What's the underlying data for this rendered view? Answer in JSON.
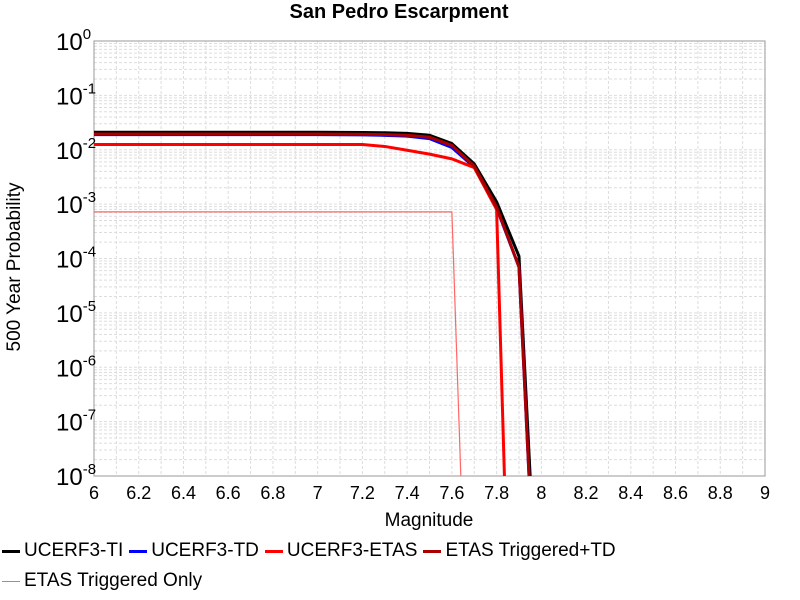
{
  "chart_data": {
    "type": "line",
    "title": "San Pedro Escarpment",
    "xlabel": "Magnitude",
    "ylabel": "500 Year Probability",
    "xlim": [
      6,
      9
    ],
    "ylim": [
      1e-08,
      1
    ],
    "yscale": "log",
    "grid": true,
    "legend_position": "bottom",
    "x_ticks": [
      "6",
      "6.2",
      "6.4",
      "6.6",
      "6.8",
      "7",
      "7.2",
      "7.4",
      "7.6",
      "7.8",
      "8",
      "8.2",
      "8.4",
      "8.6",
      "8.8",
      "9"
    ],
    "y_ticks": [
      {
        "base": "10",
        "exp": "0"
      },
      {
        "base": "10",
        "exp": "-1"
      },
      {
        "base": "10",
        "exp": "-2"
      },
      {
        "base": "10",
        "exp": "-3"
      },
      {
        "base": "10",
        "exp": "-4"
      },
      {
        "base": "10",
        "exp": "-5"
      },
      {
        "base": "10",
        "exp": "-6"
      },
      {
        "base": "10",
        "exp": "-7"
      },
      {
        "base": "10",
        "exp": "-8"
      }
    ],
    "series": [
      {
        "name": "UCERF3-TI",
        "color": "#000000",
        "width": 3,
        "x": [
          6.0,
          7.0,
          7.2,
          7.3,
          7.4,
          7.5,
          7.6,
          7.7,
          7.8,
          7.9,
          7.95
        ],
        "y": [
          0.021,
          0.021,
          0.0208,
          0.0205,
          0.02,
          0.0185,
          0.013,
          0.0055,
          0.0011,
          0.00011,
          1e-08
        ]
      },
      {
        "name": "UCERF3-TD",
        "color": "#0000ff",
        "width": 3,
        "x": [
          6.0,
          7.0,
          7.2,
          7.3,
          7.4,
          7.5,
          7.6,
          7.7,
          7.8,
          7.9,
          7.945
        ],
        "y": [
          0.019,
          0.019,
          0.0188,
          0.0184,
          0.0178,
          0.016,
          0.011,
          0.0048,
          0.00085,
          7e-05,
          1e-08
        ]
      },
      {
        "name": "UCERF3-ETAS",
        "color": "#ff0000",
        "width": 3,
        "x": [
          6.0,
          7.2,
          7.3,
          7.4,
          7.5,
          7.6,
          7.7,
          7.8,
          7.835
        ],
        "y": [
          0.0125,
          0.0125,
          0.0115,
          0.0098,
          0.0083,
          0.0068,
          0.0047,
          0.0008,
          1e-08
        ]
      },
      {
        "name": "ETAS Triggered+TD",
        "color": "#aa0000",
        "width": 3,
        "x": [
          6.0,
          7.0,
          7.2,
          7.3,
          7.4,
          7.5,
          7.6,
          7.7,
          7.8,
          7.9,
          7.945
        ],
        "y": [
          0.0195,
          0.0195,
          0.0193,
          0.019,
          0.0185,
          0.017,
          0.012,
          0.005,
          0.00088,
          7e-05,
          1e-08
        ]
      },
      {
        "name": "ETAS Triggered Only",
        "color": "#ff6666",
        "width": 1.2,
        "x": [
          6.0,
          7.6,
          7.64
        ],
        "y": [
          0.00072,
          0.00072,
          1e-08
        ]
      }
    ]
  }
}
